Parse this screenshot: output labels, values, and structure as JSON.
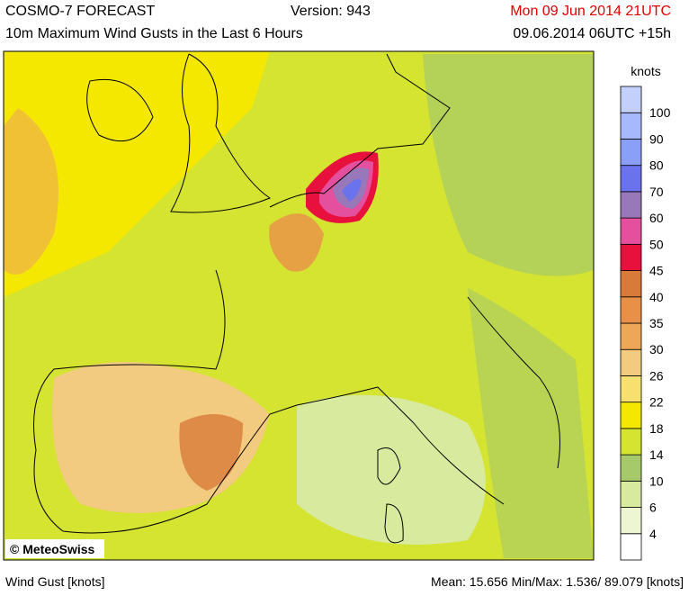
{
  "header": {
    "title": "COSMO-7 FORECAST",
    "version": "Version: 943",
    "valid_time": "Mon 09 Jun 2014 21UTC",
    "subtitle": "10m Maximum Wind Gusts in the Last 6 Hours",
    "run": "09.06.2014 06UTC +15h"
  },
  "map": {
    "copyright": "© MeteoSwiss"
  },
  "colorbar": {
    "unit": "knots",
    "ticks": [
      4,
      6,
      10,
      14,
      18,
      22,
      26,
      30,
      35,
      40,
      45,
      50,
      60,
      70,
      80,
      90,
      100
    ],
    "colors": [
      "#ffffff",
      "#eef5d2",
      "#d8ea9e",
      "#a6c96a",
      "#d4e430",
      "#f4e800",
      "#f8e070",
      "#f2ca80",
      "#eea658",
      "#e89048",
      "#d87a3a",
      "#e8103c",
      "#e4509e",
      "#9878b8",
      "#6a72ec",
      "#8aa0f8",
      "#a8b8fc",
      "#c4d0fc"
    ]
  },
  "footer": {
    "left": "Wind Gust [knots]",
    "right": "Mean:  15.656 Min/Max:  1.536/ 89.079 [knots]"
  }
}
